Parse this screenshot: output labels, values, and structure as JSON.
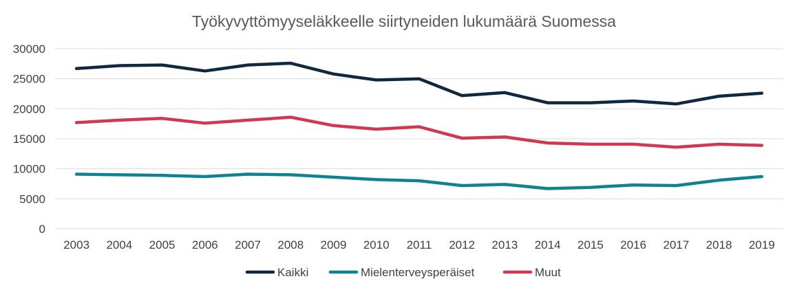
{
  "chart_data": {
    "type": "line",
    "title": "Työkyvyttömyyseläkkeelle siirtyneiden lukumäärä Suomessa",
    "xlabel": "",
    "ylabel": "",
    "ylim": [
      0,
      30000
    ],
    "yticks": [
      "0",
      "5000",
      "10000",
      "15000",
      "20000",
      "25000",
      "30000"
    ],
    "grid": true,
    "legend_position": "bottom",
    "categories": [
      "2003",
      "2004",
      "2005",
      "2006",
      "2007",
      "2008",
      "2009",
      "2010",
      "2011",
      "2012",
      "2013",
      "2014",
      "2015",
      "2016",
      "2017",
      "2018",
      "2019"
    ],
    "series": [
      {
        "name": "Kaikki",
        "color": "#0e2841",
        "values": [
          26700,
          27200,
          27300,
          26300,
          27300,
          27600,
          25800,
          24800,
          25000,
          22200,
          22700,
          21000,
          21000,
          21300,
          20800,
          22100,
          22600
        ]
      },
      {
        "name": "Mielenterveysperäiset",
        "color": "#0f8291",
        "values": [
          9100,
          9000,
          8900,
          8700,
          9100,
          9000,
          8600,
          8200,
          8000,
          7200,
          7400,
          6700,
          6900,
          7300,
          7200,
          8100,
          8700
        ]
      },
      {
        "name": "Muut",
        "color": "#d1384f",
        "values": [
          17700,
          18100,
          18400,
          17600,
          18100,
          18600,
          17200,
          16600,
          17000,
          15100,
          15300,
          14300,
          14100,
          14100,
          13600,
          14100,
          13900
        ]
      }
    ]
  }
}
